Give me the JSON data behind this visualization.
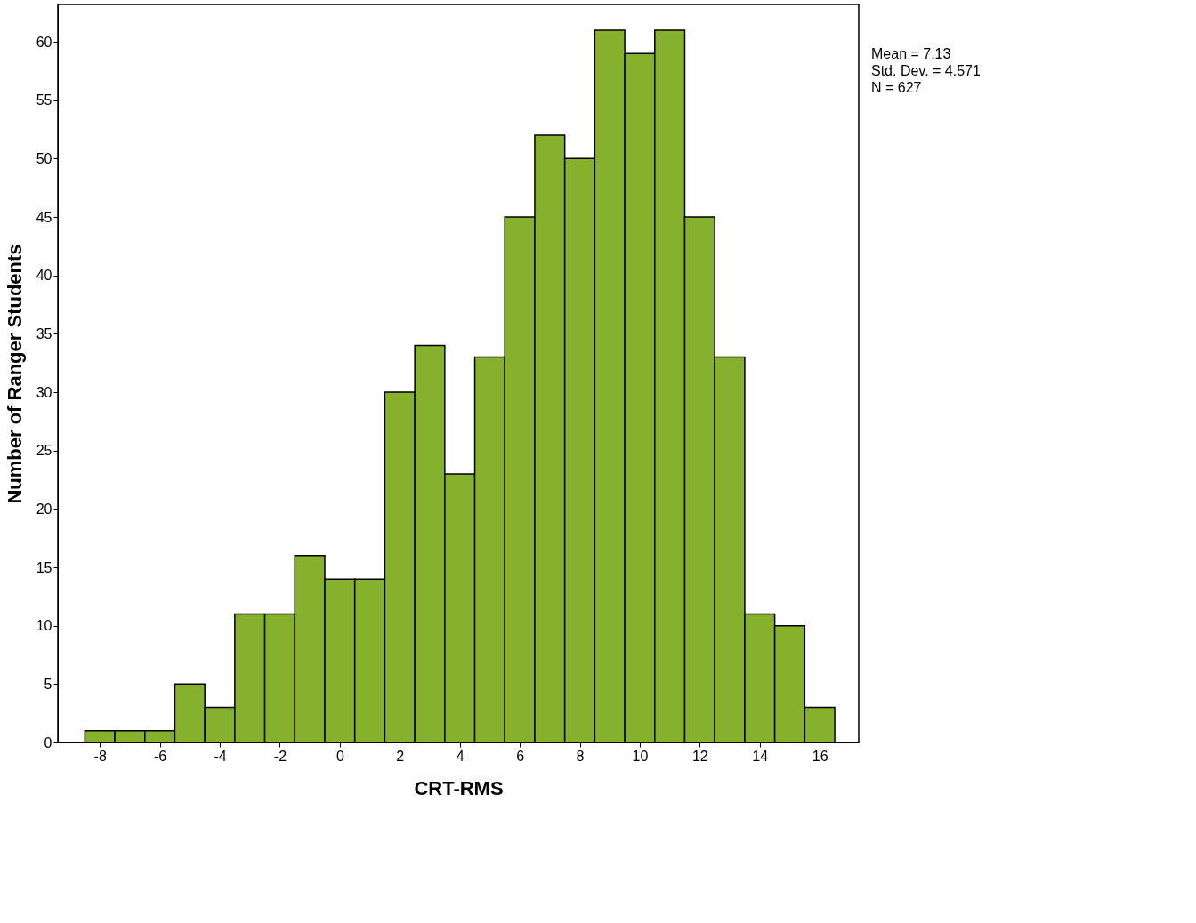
{
  "chart_data": {
    "type": "histogram",
    "xlabel": "CRT-RMS",
    "ylabel": "Number of Ranger Students",
    "bins": [
      -8.5,
      -7.5,
      -6.5,
      -5.5,
      -4.5,
      -3.5,
      -2.5,
      -1.5,
      -0.5,
      0.5,
      1.5,
      2.5,
      3.5,
      4.5,
      5.5,
      6.5,
      7.5,
      8.5,
      9.5,
      10.5,
      11.5,
      12.5,
      13.5,
      14.5,
      15.5,
      16.5
    ],
    "values": [
      1,
      1,
      1,
      5,
      3,
      11,
      11,
      16,
      14,
      14,
      30,
      34,
      23,
      33,
      45,
      52,
      50,
      61,
      59,
      61,
      45,
      33,
      11,
      10,
      3
    ],
    "color": "#86b12d",
    "xlim": [
      -9.4,
      17.3
    ],
    "ylim": [
      0,
      63.2
    ],
    "xticks": [
      -8,
      -6,
      -4,
      -2,
      0,
      2,
      4,
      6,
      8,
      10,
      12,
      14,
      16
    ],
    "yticks": [
      0,
      5,
      10,
      15,
      20,
      25,
      30,
      35,
      40,
      45,
      50,
      55,
      60
    ],
    "grid": false,
    "annotations": [
      "Mean = 7.13",
      "Std. Dev. = 4.571",
      "N = 627"
    ]
  }
}
